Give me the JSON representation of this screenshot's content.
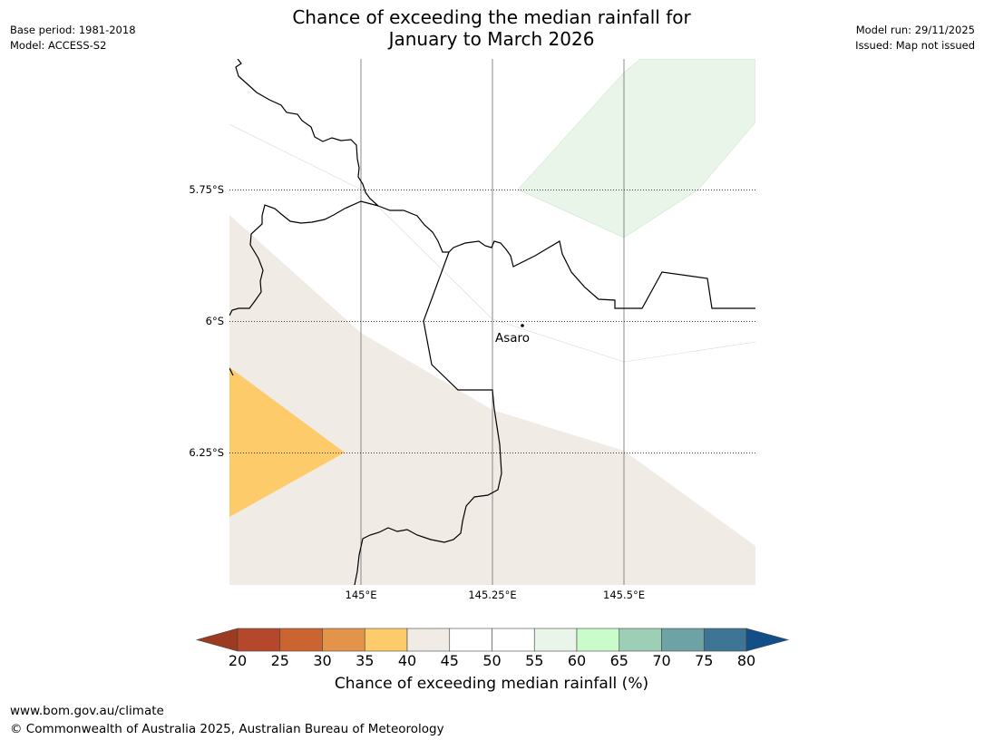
{
  "header": {
    "title_line1": "Chance of exceeding the median rainfall for",
    "title_line2": "January to March 2026",
    "base_period": "Base period: 1981-2018",
    "model": "Model: ACCESS-S2",
    "model_run": "Model run: 29/11/2025",
    "issued": "Issued: Map not issued"
  },
  "map": {
    "lat_labels": [
      "5.75°S",
      "6°S",
      "6.25°S"
    ],
    "lon_labels": [
      "145°E",
      "145.25°E",
      "145.5°E"
    ],
    "place_name": "Asaro"
  },
  "colorbar": {
    "ticks": [
      "20",
      "25",
      "30",
      "35",
      "40",
      "45",
      "50",
      "55",
      "60",
      "65",
      "70",
      "75",
      "80"
    ],
    "colors": [
      "#9c3a22",
      "#b5482a",
      "#cc6431",
      "#e2944a",
      "#fdcb69",
      "#f0ebe5",
      "#ffffff",
      "#ffffff",
      "#e9f5e9",
      "#c9fcca",
      "#9ccfb6",
      "#6ea3a5",
      "#3e7595",
      "#124e87"
    ],
    "title": "Chance of exceeding median rainfall (%)"
  },
  "footer": {
    "url": "www.bom.gov.au/climate",
    "copyright": "© Commonwealth of Australia 2025, Australian Bureau of Meteorology"
  }
}
